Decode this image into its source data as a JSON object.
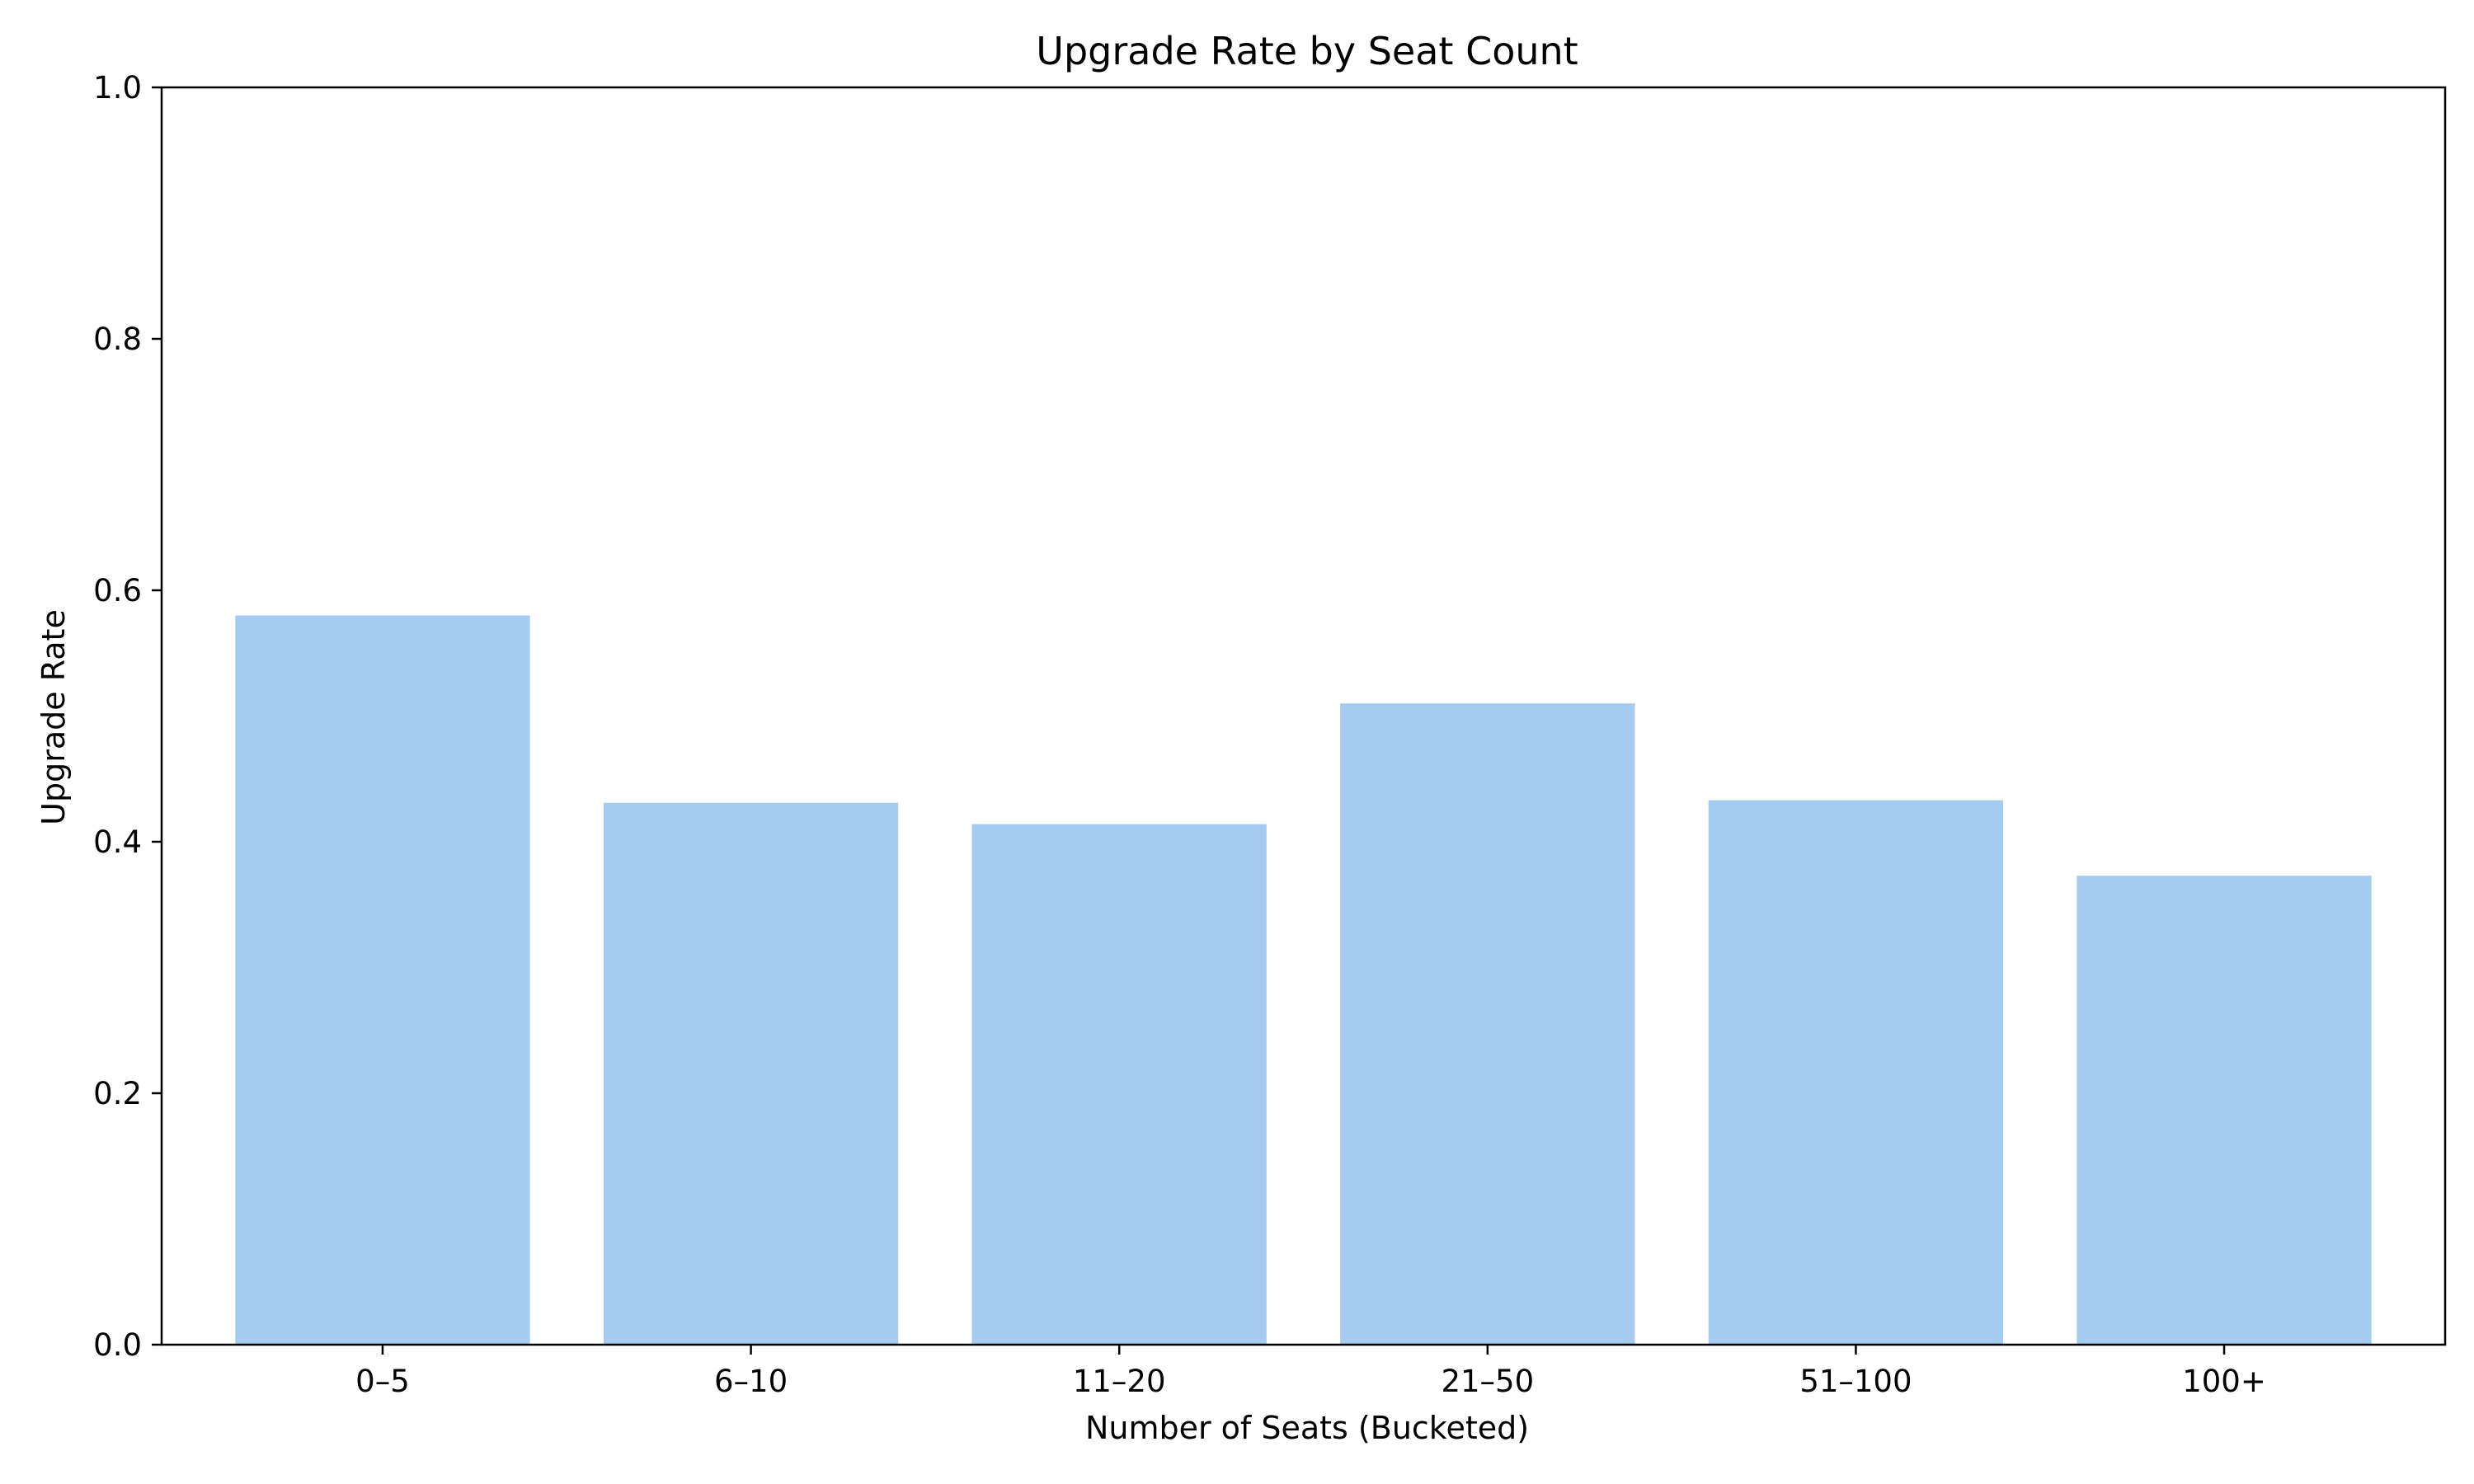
{
  "chart_data": {
    "type": "bar",
    "title": "Upgrade Rate by Seat Count",
    "xlabel": "Number of Seats (Bucketed)",
    "ylabel": "Upgrade Rate",
    "categories": [
      "0–5",
      "6–10",
      "11–20",
      "21–50",
      "51–100",
      "100+"
    ],
    "values": [
      0.58,
      0.431,
      0.414,
      0.51,
      0.433,
      0.373
    ],
    "ylim": [
      0,
      1.0
    ],
    "yticks": [
      "0.0",
      "0.2",
      "0.4",
      "0.6",
      "0.8",
      "1.0"
    ],
    "bar_color": "#a6cbf0",
    "grid": false,
    "legend": false
  }
}
